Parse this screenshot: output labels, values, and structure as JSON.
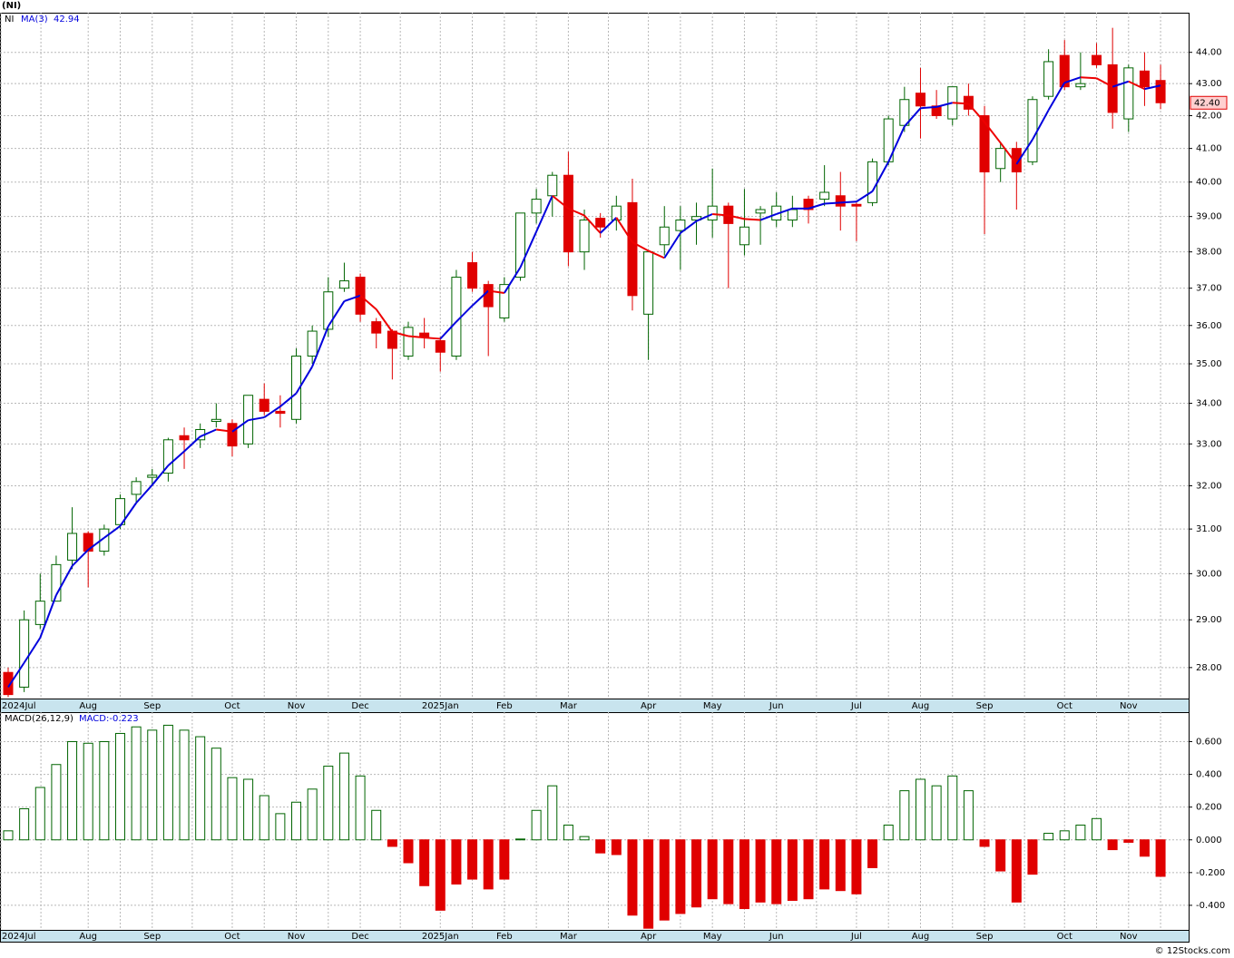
{
  "chart_data": [
    {
      "type": "candlestick",
      "title": "(NI)",
      "log": true,
      "grid": true,
      "categories": [
        "2024Jul",
        null,
        null,
        null,
        null,
        "Aug",
        null,
        null,
        null,
        "Sep",
        null,
        null,
        null,
        null,
        "Oct",
        null,
        null,
        null,
        "Nov",
        null,
        null,
        null,
        "Dec",
        null,
        null,
        null,
        null,
        "2025Jan",
        null,
        null,
        null,
        "Feb",
        null,
        null,
        null,
        "Mar",
        null,
        null,
        null,
        null,
        "Apr",
        null,
        null,
        null,
        "May",
        null,
        null,
        null,
        "Jun",
        null,
        null,
        null,
        null,
        "Jul",
        null,
        null,
        null,
        "Aug",
        null,
        null,
        null,
        "Sep",
        null,
        null,
        null,
        null,
        "Oct",
        null,
        null,
        null,
        "Nov",
        null,
        null
      ],
      "ohlc": {
        "name": "NI",
        "up_color": "#006400",
        "down_color": "#e00000",
        "open": [
          27.9,
          27.6,
          28.9,
          29.4,
          30.3,
          30.9,
          30.5,
          31.1,
          31.8,
          32.2,
          32.3,
          33.2,
          33.1,
          33.55,
          33.5,
          33.0,
          34.1,
          33.8,
          33.6,
          35.2,
          35.9,
          37.0,
          37.3,
          36.1,
          35.85,
          35.2,
          35.8,
          35.6,
          35.2,
          37.7,
          37.1,
          36.2,
          37.3,
          39.1,
          39.6,
          40.2,
          38.0,
          38.95,
          38.9,
          39.4,
          36.3,
          38.2,
          38.6,
          38.9,
          38.9,
          39.3,
          38.2,
          39.1,
          38.9,
          38.9,
          39.5,
          39.5,
          39.6,
          39.35,
          39.4,
          40.6,
          41.7,
          42.7,
          42.3,
          41.9,
          42.6,
          42.0,
          40.4,
          41.0,
          40.6,
          42.6,
          43.9,
          42.9,
          43.9,
          43.6,
          41.9,
          43.4,
          43.1
        ],
        "high": [
          28.0,
          29.2,
          30.0,
          30.4,
          31.5,
          30.95,
          31.1,
          31.8,
          32.2,
          32.4,
          33.15,
          33.4,
          33.5,
          34.0,
          33.6,
          34.2,
          34.5,
          34.2,
          35.4,
          36.0,
          37.3,
          37.7,
          37.4,
          36.2,
          35.9,
          36.1,
          36.2,
          35.7,
          37.5,
          38.0,
          37.2,
          37.3,
          39.1,
          39.8,
          40.3,
          40.9,
          39.2,
          39.1,
          39.6,
          40.1,
          38.0,
          39.3,
          39.3,
          39.4,
          40.4,
          39.4,
          39.8,
          39.3,
          39.7,
          39.6,
          39.6,
          40.5,
          40.3,
          39.4,
          40.7,
          42.0,
          42.9,
          43.5,
          42.8,
          42.9,
          43.0,
          42.3,
          41.2,
          41.2,
          42.6,
          44.1,
          44.4,
          44.0,
          44.3,
          44.8,
          43.6,
          44.0,
          43.6
        ],
        "low": [
          27.4,
          27.5,
          28.8,
          29.4,
          30.1,
          29.7,
          30.4,
          31.0,
          31.6,
          32.0,
          32.1,
          32.4,
          32.9,
          33.4,
          32.7,
          32.9,
          33.7,
          33.4,
          33.5,
          35.0,
          35.7,
          36.9,
          36.1,
          35.4,
          34.6,
          35.1,
          35.4,
          34.8,
          35.1,
          36.9,
          35.2,
          36.1,
          37.2,
          38.8,
          39.0,
          37.6,
          37.5,
          38.4,
          38.6,
          36.4,
          35.1,
          37.9,
          37.5,
          38.2,
          38.4,
          37.0,
          37.9,
          38.2,
          38.7,
          38.7,
          38.8,
          39.3,
          38.6,
          38.3,
          39.3,
          40.5,
          41.5,
          41.3,
          41.9,
          41.7,
          42.0,
          38.5,
          40.0,
          39.2,
          40.5,
          42.5,
          42.8,
          42.8,
          43.5,
          41.6,
          41.5,
          42.3,
          42.2
        ],
        "close": [
          27.45,
          29.0,
          29.4,
          30.2,
          30.9,
          30.5,
          31.0,
          31.7,
          32.1,
          32.25,
          33.1,
          33.1,
          33.35,
          33.6,
          32.95,
          34.2,
          33.8,
          33.75,
          35.2,
          35.85,
          36.9,
          37.2,
          36.3,
          35.8,
          35.4,
          35.95,
          35.7,
          35.3,
          37.3,
          37.0,
          36.5,
          37.1,
          39.1,
          39.5,
          40.2,
          38.0,
          38.9,
          38.7,
          39.3,
          36.8,
          38.0,
          38.7,
          38.9,
          39.0,
          39.3,
          38.8,
          38.7,
          39.2,
          39.3,
          39.2,
          39.2,
          39.7,
          39.3,
          39.3,
          40.6,
          41.9,
          42.5,
          42.3,
          42.0,
          42.9,
          42.2,
          40.3,
          41.0,
          40.3,
          42.5,
          43.7,
          42.9,
          43.0,
          43.6,
          42.1,
          43.5,
          42.9,
          42.4
        ],
        "last_label": "42.40"
      },
      "ma": {
        "name": "MA(3)",
        "up_color": "#0000dd",
        "down_color": "#ee0000",
        "values": [
          27.6,
          28.1,
          28.62,
          29.53,
          30.17,
          30.53,
          30.8,
          31.07,
          31.6,
          32.02,
          32.48,
          32.82,
          33.18,
          33.35,
          33.3,
          33.58,
          33.65,
          33.92,
          34.25,
          34.93,
          35.98,
          36.65,
          36.8,
          36.43,
          35.83,
          35.72,
          35.68,
          35.65,
          36.1,
          36.53,
          36.93,
          36.87,
          37.57,
          38.57,
          39.6,
          39.23,
          39.03,
          38.53,
          38.97,
          38.27,
          38.03,
          37.83,
          38.53,
          38.87,
          39.07,
          39.03,
          38.93,
          38.9,
          39.07,
          39.23,
          39.23,
          39.37,
          39.4,
          39.43,
          39.73,
          40.6,
          41.67,
          42.23,
          42.27,
          42.4,
          42.37,
          41.8,
          41.17,
          40.53,
          41.27,
          42.17,
          43.03,
          43.2,
          43.17,
          42.9,
          43.07,
          42.83,
          42.94
        ]
      },
      "ylim": [
        27.37,
        45.3
      ],
      "yticks": [
        {
          "value": 28,
          "label": "28.00"
        },
        {
          "value": 29,
          "label": "29.00"
        },
        {
          "value": 30,
          "label": "30.00"
        },
        {
          "value": 31,
          "label": "31.00"
        },
        {
          "value": 32,
          "label": "32.00"
        },
        {
          "value": 33,
          "label": "33.00"
        },
        {
          "value": 34,
          "label": "34.00"
        },
        {
          "value": 35,
          "label": "35.00"
        },
        {
          "value": 36,
          "label": "36.00"
        },
        {
          "value": 37,
          "label": "37.00"
        },
        {
          "value": 38,
          "label": "38.00"
        },
        {
          "value": 39,
          "label": "39.00"
        },
        {
          "value": 40,
          "label": "40.00"
        },
        {
          "value": 41,
          "label": "41.00"
        },
        {
          "value": 42,
          "label": "42.00"
        },
        {
          "value": 43,
          "label": "43.00"
        },
        {
          "value": 44,
          "label": "44.00"
        }
      ]
    },
    {
      "type": "bar",
      "title": "MACD(26,12,9)",
      "value_label": "MACD:-0.223",
      "grid": true,
      "up_color": "#006400",
      "down_color": "#e00000",
      "categories": [
        "2024Jul",
        null,
        null,
        null,
        null,
        "Aug",
        null,
        null,
        null,
        "Sep",
        null,
        null,
        null,
        null,
        "Oct",
        null,
        null,
        null,
        "Nov",
        null,
        null,
        null,
        "Dec",
        null,
        null,
        null,
        null,
        "2025Jan",
        null,
        null,
        null,
        "Feb",
        null,
        null,
        null,
        "Mar",
        null,
        null,
        null,
        null,
        "Apr",
        null,
        null,
        null,
        "May",
        null,
        null,
        null,
        "Jun",
        null,
        null,
        null,
        null,
        "Jul",
        null,
        null,
        null,
        "Aug",
        null,
        null,
        null,
        "Sep",
        null,
        null,
        null,
        null,
        "Oct",
        null,
        null,
        null,
        "Nov",
        null,
        null
      ],
      "values": [
        0.055,
        0.19,
        0.32,
        0.46,
        0.6,
        0.59,
        0.6,
        0.65,
        0.69,
        0.67,
        0.7,
        0.67,
        0.63,
        0.56,
        0.38,
        0.37,
        0.27,
        0.16,
        0.23,
        0.31,
        0.45,
        0.53,
        0.39,
        0.18,
        -0.04,
        -0.14,
        -0.28,
        -0.43,
        -0.27,
        -0.24,
        -0.3,
        -0.24,
        0.005,
        0.18,
        0.33,
        0.09,
        0.02,
        -0.08,
        -0.09,
        -0.46,
        -0.54,
        -0.49,
        -0.45,
        -0.41,
        -0.36,
        -0.39,
        -0.42,
        -0.38,
        -0.39,
        -0.37,
        -0.36,
        -0.3,
        -0.31,
        -0.33,
        -0.17,
        0.09,
        0.3,
        0.37,
        0.33,
        0.39,
        0.3,
        -0.04,
        -0.19,
        -0.38,
        -0.21,
        0.04,
        0.055,
        0.09,
        0.13,
        -0.06,
        -0.015,
        -0.1,
        -0.223
      ],
      "ylim": [
        -0.55,
        0.78
      ],
      "yticks": [
        {
          "value": -0.4,
          "label": "-0.400"
        },
        {
          "value": -0.2,
          "label": "-0.200"
        },
        {
          "value": 0,
          "label": "0.000"
        },
        {
          "value": 0.2,
          "label": "0.200"
        },
        {
          "value": 0.4,
          "label": "0.400"
        },
        {
          "value": 0.6,
          "label": "0.600"
        }
      ]
    }
  ],
  "watermark": "© 12Stocks.com"
}
